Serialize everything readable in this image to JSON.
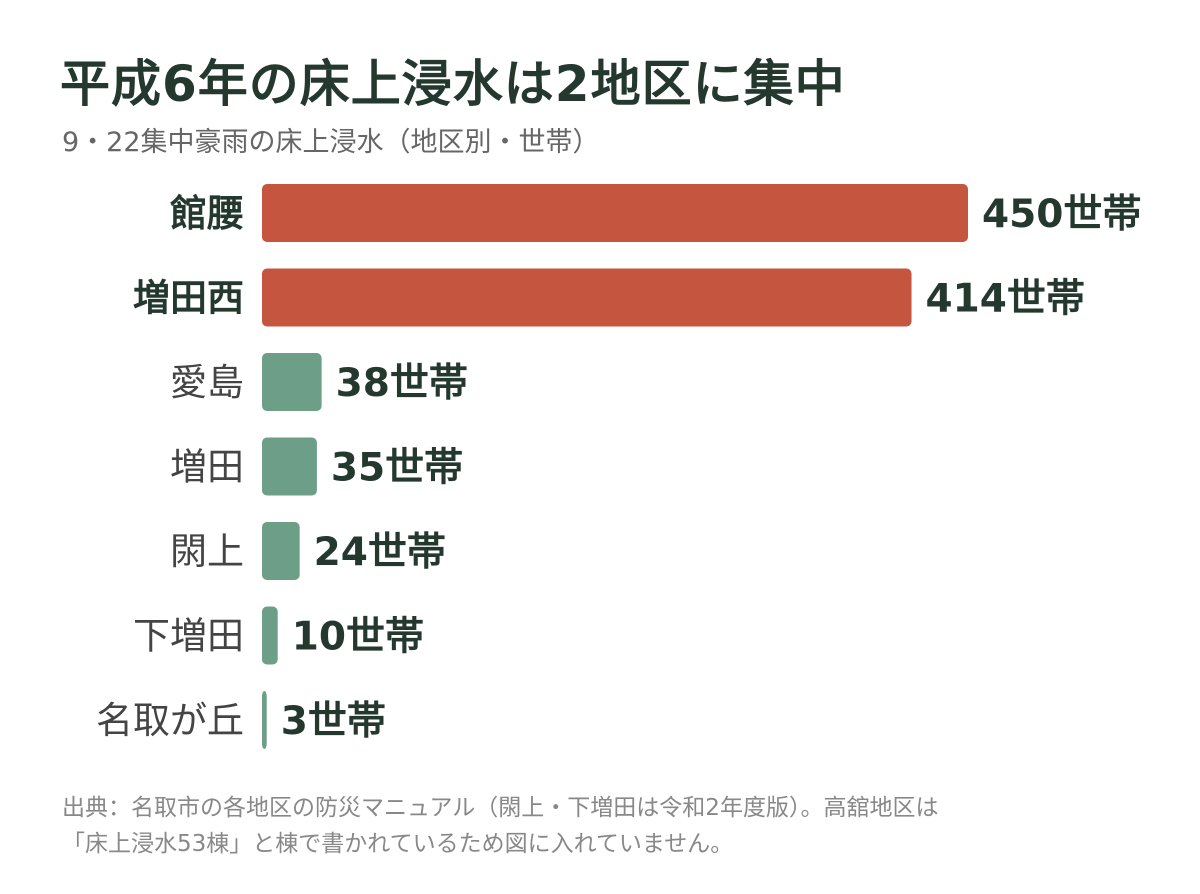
{
  "title": "平成6年の床上浸水は2地区に集中",
  "subtitle": "9・22集中豪雨の床上浸水（地区別・世帯）",
  "chart_data": {
    "type": "bar",
    "orientation": "horizontal",
    "categories": [
      "館腰",
      "増田西",
      "愛島",
      "増田",
      "閖上",
      "下増田",
      "名取が丘"
    ],
    "values": [
      450,
      414,
      38,
      35,
      24,
      10,
      3
    ],
    "value_labels": [
      "450世帯",
      "414世帯",
      "38世帯",
      "35世帯",
      "24世帯",
      "10世帯",
      "3世帯"
    ],
    "highlight": [
      true,
      true,
      false,
      false,
      false,
      false,
      false
    ],
    "unit": "世帯",
    "xlim": [
      0,
      450
    ],
    "colors": {
      "highlight": "#c65540",
      "normal": "#6d9e87",
      "label_dark": "#24382e",
      "label_normal": "#444444"
    }
  },
  "footnote": {
    "line1": "出典：名取市の各地区の防災マニュアル（閖上・下増田は令和2年度版）。高舘地区は",
    "line2": "「床上浸水53棟」と棟で書かれているため図に入れていません。"
  }
}
